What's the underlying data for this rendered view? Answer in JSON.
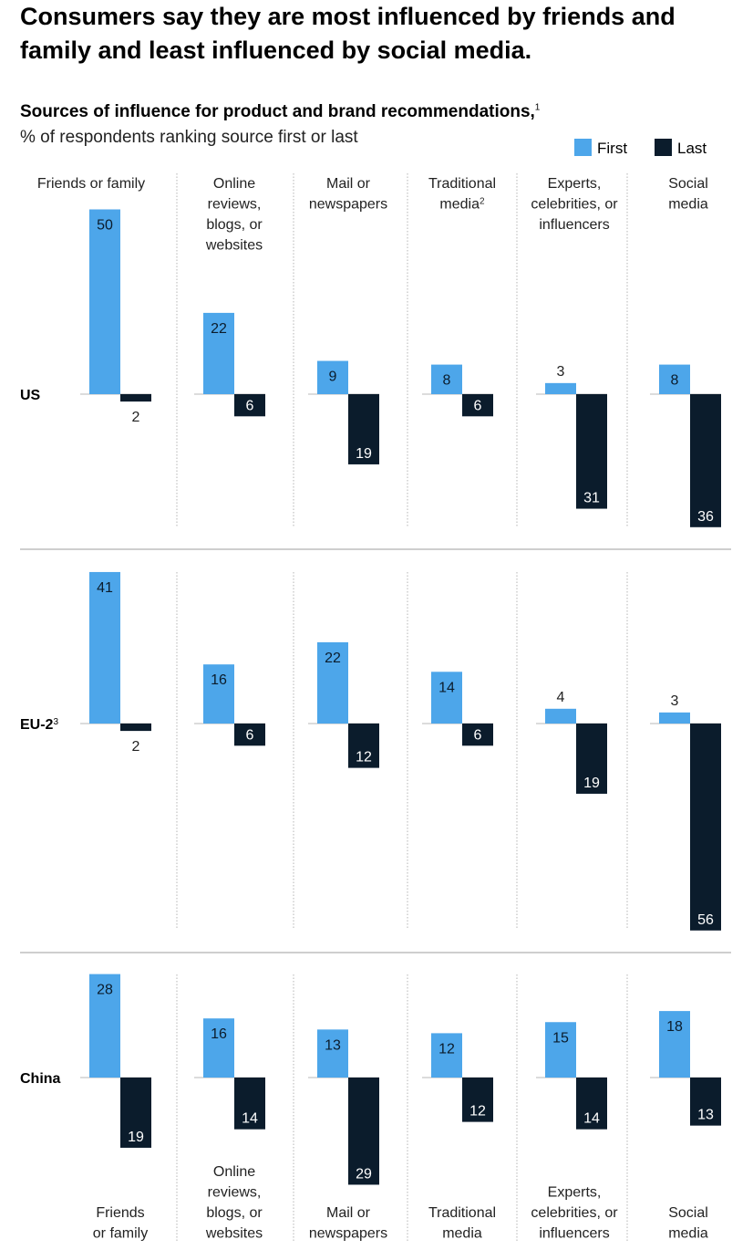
{
  "title": "Consumers say they are most influenced by friends and family and least influenced by social media.",
  "subtitle": "Sources of influence for product and brand recommendations,",
  "subtitle_note": "1",
  "caption": "% of respondents ranking source first or last",
  "legend": [
    {
      "label": "First",
      "color": "#4da6ea"
    },
    {
      "label": "Last",
      "color": "#0b1c2c"
    }
  ],
  "colors": {
    "first": "#4da6ea",
    "last": "#0b1c2c",
    "axis": "#c8c8c8",
    "divider": "#bdbdbd"
  },
  "top_labels": [
    {
      "lines": [
        "Friends or family"
      ],
      "note": ""
    },
    {
      "lines": [
        "Online",
        "reviews,",
        "blogs, or",
        "websites"
      ],
      "note": ""
    },
    {
      "lines": [
        "Mail or",
        "newspapers"
      ],
      "note": ""
    },
    {
      "lines": [
        "Traditional",
        "media"
      ],
      "note": "2"
    },
    {
      "lines": [
        "Experts,",
        "celebrities, or",
        "influencers"
      ],
      "note": ""
    },
    {
      "lines": [
        "Social",
        "media"
      ],
      "note": ""
    }
  ],
  "bottom_labels": [
    {
      "lines": [
        "Friends",
        "or family"
      ]
    },
    {
      "lines": [
        "Online",
        "reviews,",
        "blogs, or",
        "websites"
      ]
    },
    {
      "lines": [
        "Mail or",
        "newspapers"
      ]
    },
    {
      "lines": [
        "Traditional",
        "media"
      ]
    },
    {
      "lines": [
        "Experts,",
        "celebrities, or",
        "influencers"
      ]
    },
    {
      "lines": [
        "Social",
        "media"
      ]
    }
  ],
  "chart_data": {
    "type": "bar",
    "categories": [
      "Friends or family",
      "Online reviews, blogs, or websites",
      "Mail or newspapers",
      "Traditional media",
      "Experts, celebrities, or influencers",
      "Social media"
    ],
    "regions": [
      {
        "name": "US",
        "note": "",
        "first": [
          50,
          22,
          9,
          8,
          3,
          8
        ],
        "last": [
          2,
          6,
          19,
          6,
          31,
          36
        ]
      },
      {
        "name": "EU-2",
        "note": "3",
        "first": [
          41,
          16,
          22,
          14,
          4,
          3
        ],
        "last": [
          2,
          6,
          12,
          6,
          19,
          56
        ]
      },
      {
        "name": "China",
        "note": "",
        "first": [
          28,
          16,
          13,
          12,
          15,
          18
        ],
        "last": [
          19,
          14,
          29,
          12,
          14,
          13
        ]
      }
    ],
    "series": [
      {
        "name": "First"
      },
      {
        "name": "Last"
      }
    ]
  }
}
